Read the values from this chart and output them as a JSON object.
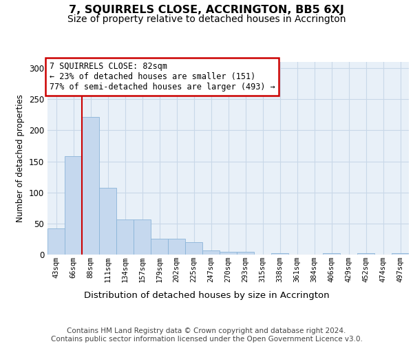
{
  "title": "7, SQUIRRELS CLOSE, ACCRINGTON, BB5 6XJ",
  "subtitle": "Size of property relative to detached houses in Accrington",
  "xlabel": "Distribution of detached houses by size in Accrington",
  "ylabel": "Number of detached properties",
  "categories": [
    "43sqm",
    "66sqm",
    "88sqm",
    "111sqm",
    "134sqm",
    "157sqm",
    "179sqm",
    "202sqm",
    "225sqm",
    "247sqm",
    "270sqm",
    "293sqm",
    "315sqm",
    "338sqm",
    "361sqm",
    "384sqm",
    "406sqm",
    "429sqm",
    "452sqm",
    "474sqm",
    "497sqm"
  ],
  "values": [
    42,
    158,
    221,
    107,
    56,
    56,
    25,
    25,
    20,
    7,
    4,
    4,
    0,
    2,
    0,
    0,
    2,
    0,
    2,
    0,
    2
  ],
  "bar_color": "#c5d8ee",
  "bar_edge_color": "#8ab4d8",
  "grid_color": "#c8d8e8",
  "bg_color": "#e8f0f8",
  "vline_x": 1.5,
  "vline_color": "#cc0000",
  "annotation_text": "7 SQUIRRELS CLOSE: 82sqm\n← 23% of detached houses are smaller (151)\n77% of semi-detached houses are larger (493) →",
  "ann_box_facecolor": "#ffffff",
  "ann_box_edgecolor": "#cc0000",
  "footer_line1": "Contains HM Land Registry data © Crown copyright and database right 2024.",
  "footer_line2": "Contains public sector information licensed under the Open Government Licence v3.0.",
  "ylim_max": 310,
  "title_fontsize": 11.5,
  "subtitle_fontsize": 10,
  "ann_fontsize": 8.5,
  "tick_fontsize": 7.5,
  "ylabel_fontsize": 8.5,
  "xlabel_fontsize": 9.5,
  "footer_fontsize": 7.5
}
